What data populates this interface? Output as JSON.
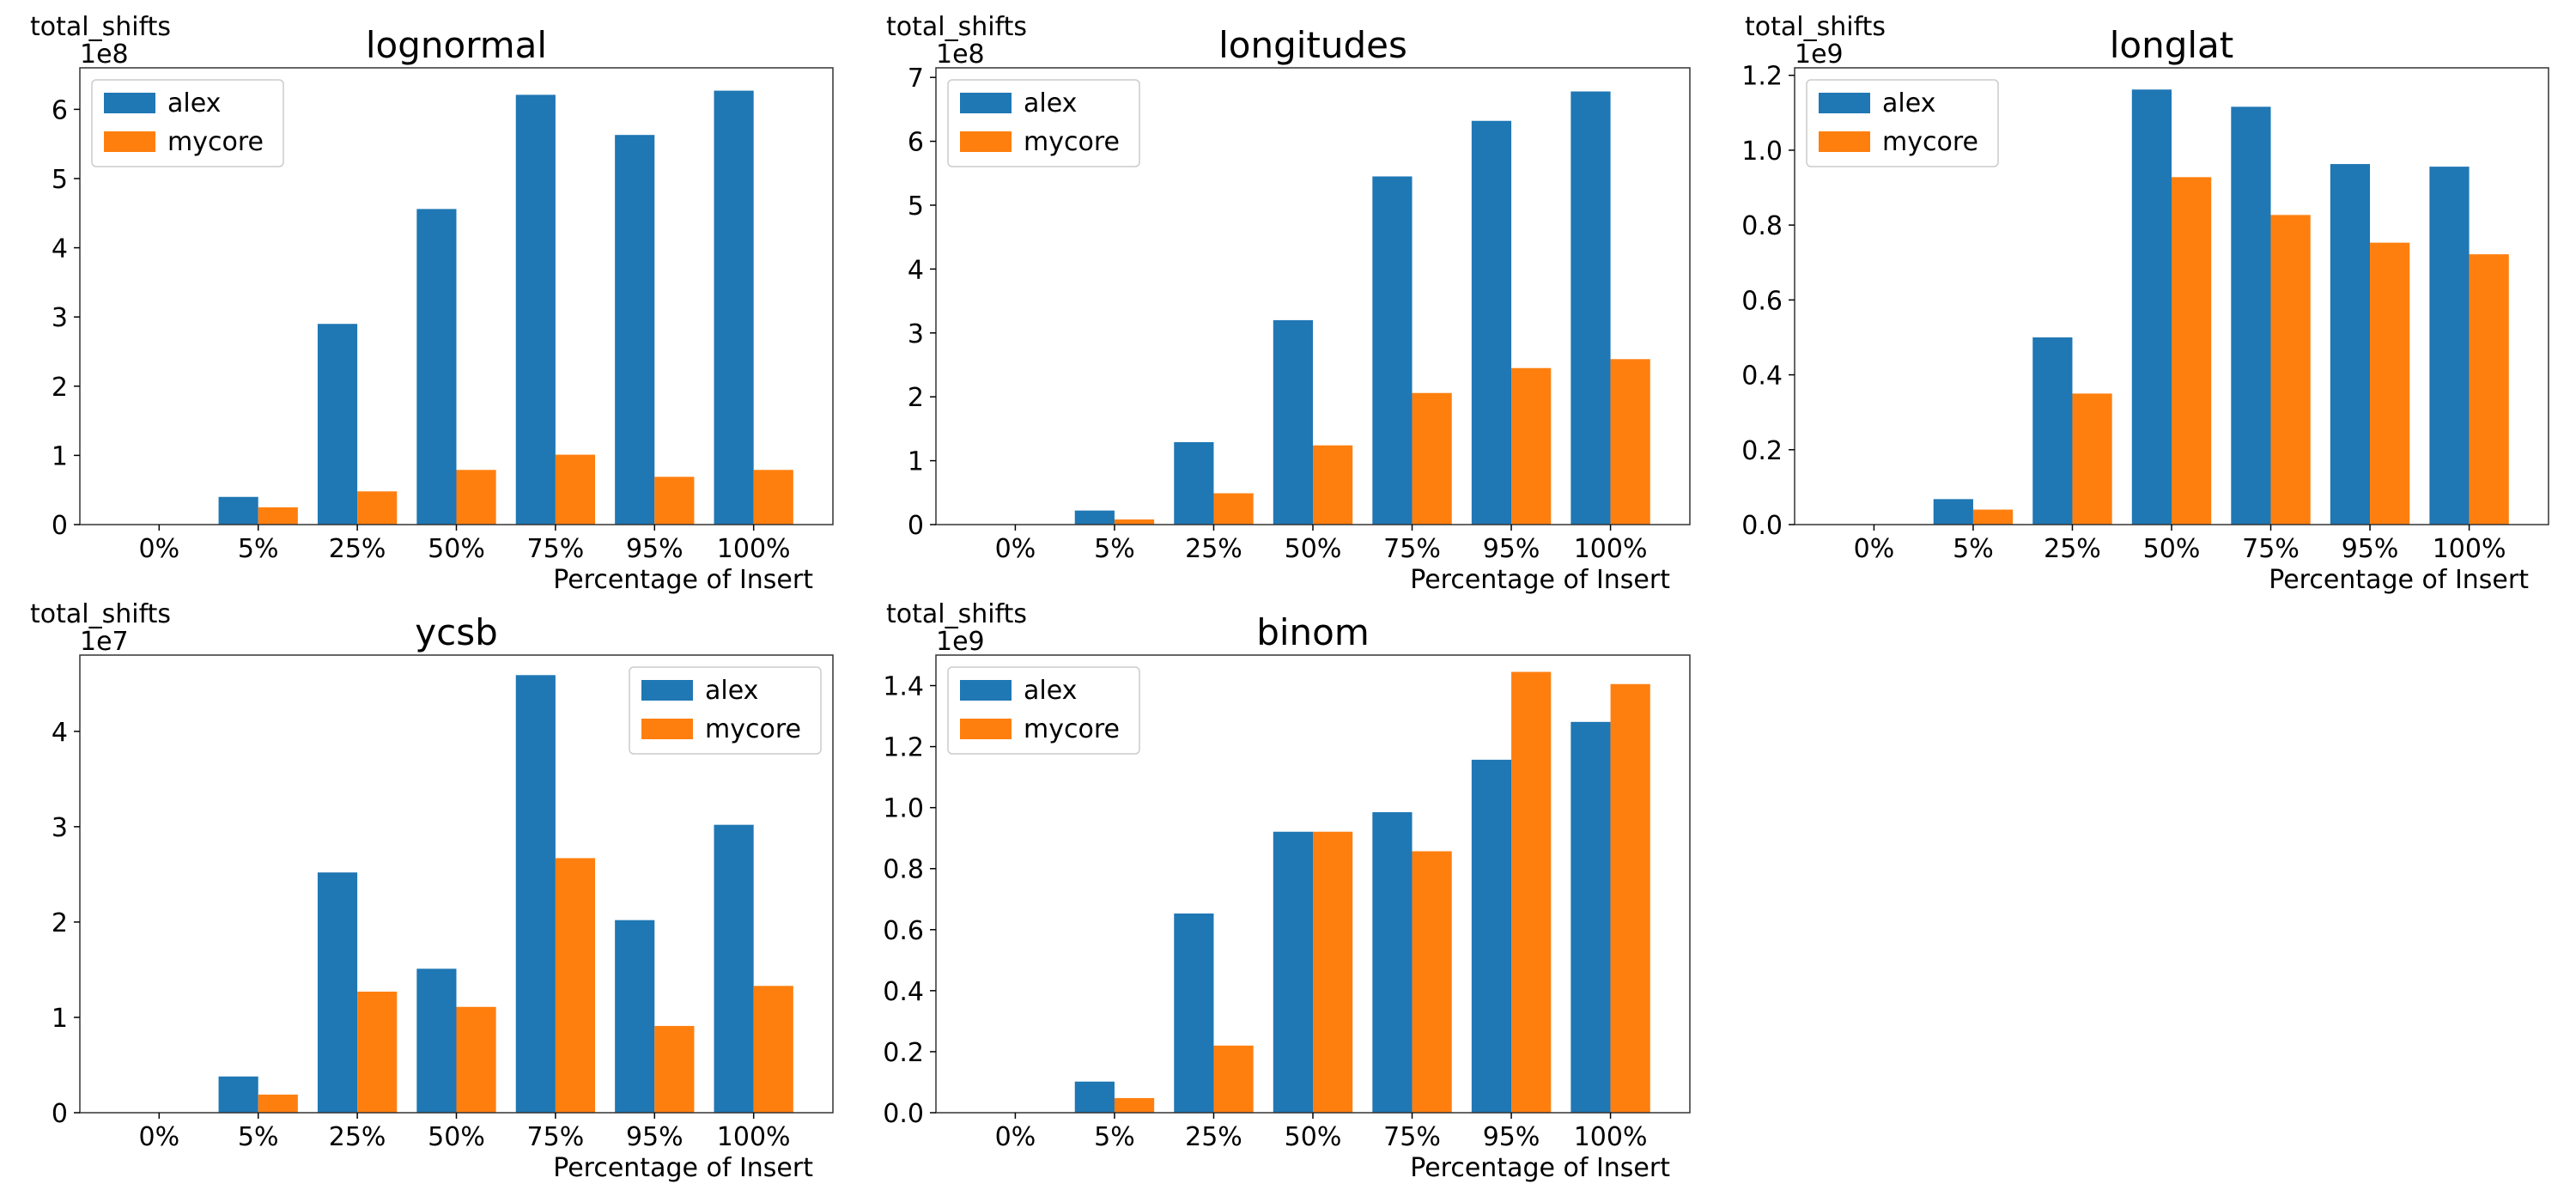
{
  "figure": {
    "background": "#ffffff",
    "series_colors": {
      "alex": "#1f77b4",
      "mycore": "#ff7f0e"
    }
  },
  "chart_data": [
    {
      "type": "bar",
      "title": "lognormal",
      "xlabel": "Percentage of Insert",
      "ylabel": "total_shifts",
      "offset_text": "1e8",
      "scale": 100000000,
      "ylim": [
        0,
        660000000
      ],
      "yticks": [
        0,
        1,
        2,
        3,
        4,
        5,
        6
      ],
      "ytick_labels": [
        "0",
        "1",
        "2",
        "3",
        "4",
        "5",
        "6"
      ],
      "legend": "upper-left",
      "categories": [
        "0%",
        "5%",
        "25%",
        "50%",
        "75%",
        "95%",
        "100%"
      ],
      "series": [
        {
          "name": "alex",
          "color": "#1f77b4",
          "values": [
            0,
            40000000,
            290000000,
            456000000,
            621000000,
            563000000,
            627000000
          ]
        },
        {
          "name": "mycore",
          "color": "#ff7f0e",
          "values": [
            0,
            25000000,
            48000000,
            79000000,
            101000000,
            69000000,
            79000000
          ]
        }
      ]
    },
    {
      "type": "bar",
      "title": "longitudes",
      "xlabel": "Percentage of Insert",
      "ylabel": "total_shifts",
      "offset_text": "1e8",
      "scale": 100000000,
      "ylim": [
        0,
        715000000
      ],
      "yticks": [
        0,
        1,
        2,
        3,
        4,
        5,
        6,
        7
      ],
      "ytick_labels": [
        "0",
        "1",
        "2",
        "3",
        "4",
        "5",
        "6",
        "7"
      ],
      "legend": "upper-left",
      "categories": [
        "0%",
        "5%",
        "25%",
        "50%",
        "75%",
        "95%",
        "100%"
      ],
      "series": [
        {
          "name": "alex",
          "color": "#1f77b4",
          "values": [
            0,
            22000000,
            129000000,
            320000000,
            545000000,
            632000000,
            678000000
          ]
        },
        {
          "name": "mycore",
          "color": "#ff7f0e",
          "values": [
            0,
            8000000,
            49000000,
            124000000,
            206000000,
            245000000,
            259000000
          ]
        }
      ]
    },
    {
      "type": "bar",
      "title": "longlat",
      "xlabel": "Percentage of Insert",
      "ylabel": "total_shifts",
      "offset_text": "1e9",
      "scale": 1000000000,
      "ylim": [
        0,
        1220000000
      ],
      "yticks": [
        0,
        0.2,
        0.4,
        0.6,
        0.8,
        1.0,
        1.2
      ],
      "ytick_labels": [
        "0.0",
        "0.2",
        "0.4",
        "0.6",
        "0.8",
        "1.0",
        "1.2"
      ],
      "legend": "upper-left",
      "categories": [
        "0%",
        "5%",
        "25%",
        "50%",
        "75%",
        "95%",
        "100%"
      ],
      "series": [
        {
          "name": "alex",
          "color": "#1f77b4",
          "values": [
            0,
            68000000,
            500000000,
            1162000000,
            1116000000,
            963000000,
            956000000
          ]
        },
        {
          "name": "mycore",
          "color": "#ff7f0e",
          "values": [
            0,
            40000000,
            350000000,
            928000000,
            827000000,
            753000000,
            722000000
          ]
        }
      ]
    },
    {
      "type": "bar",
      "title": "ycsb",
      "xlabel": "Percentage of Insert",
      "ylabel": "total_shifts",
      "offset_text": "1e7",
      "scale": 10000000,
      "ylim": [
        0,
        48000000
      ],
      "yticks": [
        0,
        1,
        2,
        3,
        4
      ],
      "ytick_labels": [
        "0",
        "1",
        "2",
        "3",
        "4"
      ],
      "legend": "upper-right",
      "categories": [
        "0%",
        "5%",
        "25%",
        "50%",
        "75%",
        "95%",
        "100%"
      ],
      "series": [
        {
          "name": "alex",
          "color": "#1f77b4",
          "values": [
            0,
            3800000,
            25200000,
            15100000,
            45900000,
            20200000,
            30200000
          ]
        },
        {
          "name": "mycore",
          "color": "#ff7f0e",
          "values": [
            0,
            1900000,
            12700000,
            11100000,
            26700000,
            9100000,
            13300000
          ]
        }
      ]
    },
    {
      "type": "bar",
      "title": "binom",
      "xlabel": "Percentage of Insert",
      "ylabel": "total_shifts",
      "offset_text": "1e9",
      "scale": 1000000000,
      "ylim": [
        0,
        1500000000
      ],
      "yticks": [
        0,
        0.2,
        0.4,
        0.6,
        0.8,
        1.0,
        1.2,
        1.4
      ],
      "ytick_labels": [
        "0.0",
        "0.2",
        "0.4",
        "0.6",
        "0.8",
        "1.0",
        "1.2",
        "1.4"
      ],
      "legend": "upper-left",
      "categories": [
        "0%",
        "5%",
        "25%",
        "50%",
        "75%",
        "95%",
        "100%"
      ],
      "series": [
        {
          "name": "alex",
          "color": "#1f77b4",
          "values": [
            0,
            102000000,
            653000000,
            921000000,
            985000000,
            1157000000,
            1281000000
          ]
        },
        {
          "name": "mycore",
          "color": "#ff7f0e",
          "values": [
            0,
            48000000,
            220000000,
            921000000,
            857000000,
            1445000000,
            1405000000
          ]
        }
      ]
    }
  ]
}
